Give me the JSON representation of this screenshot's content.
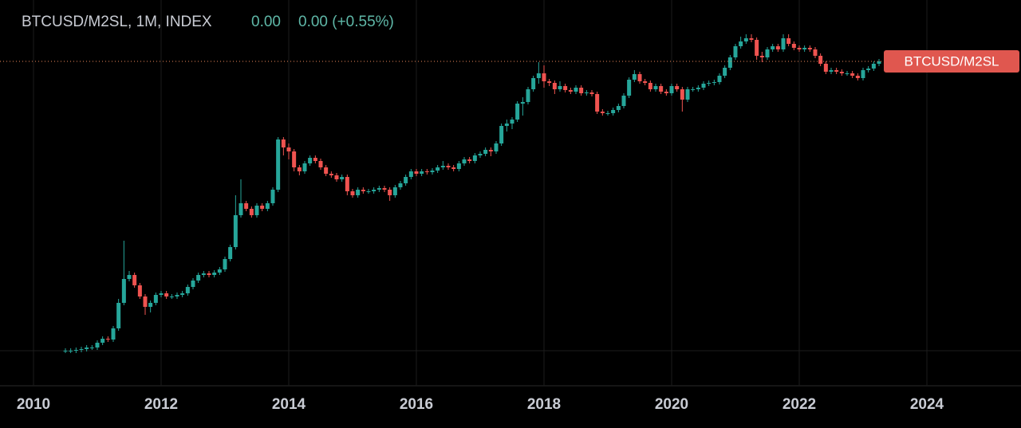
{
  "header": {
    "title": "BTCUSD/M2SL, 1M, INDEX",
    "value": "0.00",
    "change": "0.00 (+0.55%)"
  },
  "chart_data": {
    "type": "candlestick",
    "last_label": "BTCUSD/M2SL",
    "up_color": "#26a69a",
    "down_color": "#ef5350",
    "last_line_color": "#f08a5d",
    "xlim": [
      2009.475,
      2025.475
    ],
    "ylim": [
      0,
      480
    ],
    "xticks": [
      2010,
      2012,
      2014,
      2016,
      2018,
      2020,
      2022,
      2024
    ],
    "x": [
      2010.5,
      2010.583,
      2010.667,
      2010.75,
      2010.833,
      2010.917,
      2011,
      2011.083,
      2011.167,
      2011.25,
      2011.333,
      2011.417,
      2011.5,
      2011.583,
      2011.667,
      2011.75,
      2011.833,
      2011.917,
      2012,
      2012.083,
      2012.167,
      2012.25,
      2012.333,
      2012.417,
      2012.5,
      2012.583,
      2012.667,
      2012.75,
      2012.833,
      2012.917,
      2013,
      2013.083,
      2013.167,
      2013.25,
      2013.333,
      2013.417,
      2013.5,
      2013.583,
      2013.667,
      2013.75,
      2013.833,
      2013.917,
      2014,
      2014.083,
      2014.167,
      2014.25,
      2014.333,
      2014.417,
      2014.5,
      2014.583,
      2014.667,
      2014.75,
      2014.833,
      2014.917,
      2015,
      2015.083,
      2015.167,
      2015.25,
      2015.333,
      2015.417,
      2015.5,
      2015.583,
      2015.667,
      2015.75,
      2015.833,
      2015.917,
      2016,
      2016.083,
      2016.167,
      2016.25,
      2016.333,
      2016.417,
      2016.5,
      2016.583,
      2016.667,
      2016.75,
      2016.833,
      2016.917,
      2017,
      2017.083,
      2017.167,
      2017.25,
      2017.333,
      2017.417,
      2017.5,
      2017.583,
      2017.667,
      2017.75,
      2017.833,
      2017.917,
      2018,
      2018.083,
      2018.167,
      2018.25,
      2018.333,
      2018.417,
      2018.5,
      2018.583,
      2018.667,
      2018.75,
      2018.833,
      2018.917,
      2019,
      2019.083,
      2019.167,
      2019.25,
      2019.333,
      2019.417,
      2019.5,
      2019.583,
      2019.667,
      2019.75,
      2019.833,
      2019.917,
      2020,
      2020.083,
      2020.167,
      2020.25,
      2020.333,
      2020.417,
      2020.5,
      2020.583,
      2020.667,
      2020.75,
      2020.833,
      2020.917,
      2021,
      2021.083,
      2021.167,
      2021.25,
      2021.333,
      2021.417,
      2021.5,
      2021.583,
      2021.667,
      2021.75,
      2021.833,
      2021.917,
      2022,
      2022.083,
      2022.167,
      2022.25,
      2022.333,
      2022.417,
      2022.5,
      2022.583,
      2022.667,
      2022.75,
      2022.833,
      2022.917,
      2023,
      2023.083,
      2023.167,
      2023.25
    ],
    "open": [
      40,
      40,
      40,
      41,
      42,
      44,
      44,
      50,
      55,
      54,
      68,
      100,
      130,
      135,
      122,
      108,
      95,
      100,
      110,
      112,
      108,
      108,
      110,
      112,
      120,
      128,
      135,
      137,
      135,
      138,
      142,
      155,
      170,
      210,
      225,
      218,
      210,
      222,
      218,
      225,
      242,
      305,
      295,
      290,
      270,
      265,
      275,
      282,
      278,
      270,
      262,
      260,
      255,
      258,
      240,
      235,
      242,
      240,
      240,
      242,
      244,
      242,
      235,
      245,
      250,
      258,
      265,
      262,
      265,
      264,
      266,
      270,
      272,
      270,
      268,
      275,
      280,
      278,
      285,
      287,
      292,
      290,
      300,
      322,
      325,
      330,
      350,
      352,
      368,
      382,
      388,
      378,
      376,
      368,
      372,
      367,
      365,
      370,
      363,
      364,
      362,
      340,
      338,
      338,
      342,
      347,
      360,
      380,
      387,
      378,
      376,
      368,
      372,
      365,
      363,
      372,
      368,
      355,
      368,
      368,
      370,
      375,
      376,
      377,
      385,
      395,
      408,
      422,
      428,
      432,
      430,
      410,
      408,
      418,
      422,
      418,
      432,
      425,
      420,
      418,
      420,
      418,
      410,
      400,
      390,
      392,
      390,
      388,
      388,
      385,
      382,
      392,
      394,
      400
    ],
    "high": [
      43,
      43,
      44,
      45,
      47,
      47,
      53,
      58,
      58,
      71,
      105,
      178,
      140,
      138,
      125,
      111,
      103,
      113,
      115,
      115,
      111,
      113,
      115,
      123,
      131,
      138,
      140,
      140,
      141,
      145,
      158,
      173,
      235,
      255,
      228,
      221,
      225,
      225,
      228,
      245,
      308,
      308,
      300,
      293,
      273,
      278,
      285,
      285,
      281,
      273,
      265,
      263,
      261,
      261,
      243,
      245,
      245,
      243,
      245,
      247,
      247,
      245,
      248,
      253,
      261,
      268,
      268,
      268,
      268,
      269,
      273,
      278,
      275,
      273,
      278,
      283,
      283,
      288,
      290,
      295,
      295,
      303,
      325,
      330,
      333,
      353,
      358,
      371,
      385,
      402,
      398,
      381,
      379,
      378,
      375,
      370,
      373,
      373,
      367,
      367,
      365,
      343,
      341,
      345,
      350,
      363,
      383,
      392,
      390,
      381,
      379,
      375,
      375,
      368,
      375,
      375,
      371,
      371,
      371,
      373,
      378,
      379,
      380,
      388,
      398,
      411,
      425,
      434,
      437,
      437,
      433,
      415,
      421,
      425,
      425,
      437,
      437,
      428,
      423,
      423,
      423,
      421,
      413,
      403,
      395,
      395,
      393,
      391,
      391,
      388,
      395,
      397,
      403,
      406
    ],
    "low": [
      37,
      37,
      37,
      38,
      39,
      41,
      41,
      47,
      51,
      51,
      65,
      97,
      127,
      119,
      105,
      85,
      88,
      97,
      107,
      105,
      105,
      105,
      107,
      109,
      117,
      125,
      132,
      132,
      132,
      135,
      139,
      152,
      167,
      207,
      215,
      207,
      207,
      215,
      215,
      222,
      239,
      285,
      280,
      265,
      260,
      262,
      272,
      275,
      267,
      259,
      257,
      252,
      252,
      235,
      232,
      232,
      237,
      237,
      237,
      239,
      239,
      228,
      232,
      242,
      247,
      255,
      259,
      259,
      261,
      261,
      263,
      267,
      267,
      265,
      265,
      272,
      275,
      275,
      282,
      284,
      284,
      287,
      297,
      315,
      318,
      327,
      335,
      349,
      365,
      375,
      370,
      372,
      362,
      365,
      364,
      362,
      362,
      360,
      360,
      359,
      337,
      335,
      335,
      335,
      339,
      344,
      357,
      377,
      375,
      373,
      365,
      365,
      362,
      360,
      360,
      365,
      340,
      352,
      365,
      365,
      367,
      372,
      373,
      374,
      382,
      392,
      405,
      419,
      425,
      427,
      405,
      402,
      405,
      415,
      415,
      415,
      422,
      417,
      415,
      415,
      415,
      407,
      397,
      387,
      387,
      387,
      385,
      385,
      382,
      379,
      379,
      389,
      391,
      397
    ],
    "close": [
      40,
      40,
      41,
      42,
      44,
      44,
      50,
      55,
      54,
      68,
      100,
      130,
      135,
      122,
      108,
      95,
      100,
      110,
      112,
      108,
      108,
      110,
      112,
      120,
      128,
      135,
      137,
      135,
      138,
      142,
      155,
      170,
      210,
      225,
      218,
      210,
      222,
      218,
      225,
      242,
      305,
      295,
      290,
      270,
      265,
      275,
      282,
      278,
      270,
      262,
      260,
      255,
      258,
      240,
      235,
      242,
      240,
      240,
      242,
      244,
      242,
      235,
      245,
      250,
      258,
      265,
      262,
      265,
      264,
      266,
      270,
      272,
      270,
      268,
      275,
      280,
      278,
      285,
      287,
      292,
      290,
      300,
      322,
      325,
      330,
      350,
      352,
      368,
      382,
      388,
      378,
      376,
      368,
      372,
      367,
      365,
      370,
      363,
      364,
      362,
      340,
      338,
      338,
      342,
      347,
      360,
      380,
      387,
      378,
      376,
      368,
      372,
      365,
      363,
      372,
      368,
      355,
      368,
      368,
      370,
      375,
      376,
      377,
      385,
      395,
      408,
      422,
      428,
      432,
      430,
      410,
      408,
      418,
      422,
      418,
      432,
      425,
      420,
      418,
      420,
      418,
      410,
      400,
      390,
      392,
      390,
      388,
      388,
      385,
      382,
      392,
      394,
      400,
      403
    ]
  }
}
